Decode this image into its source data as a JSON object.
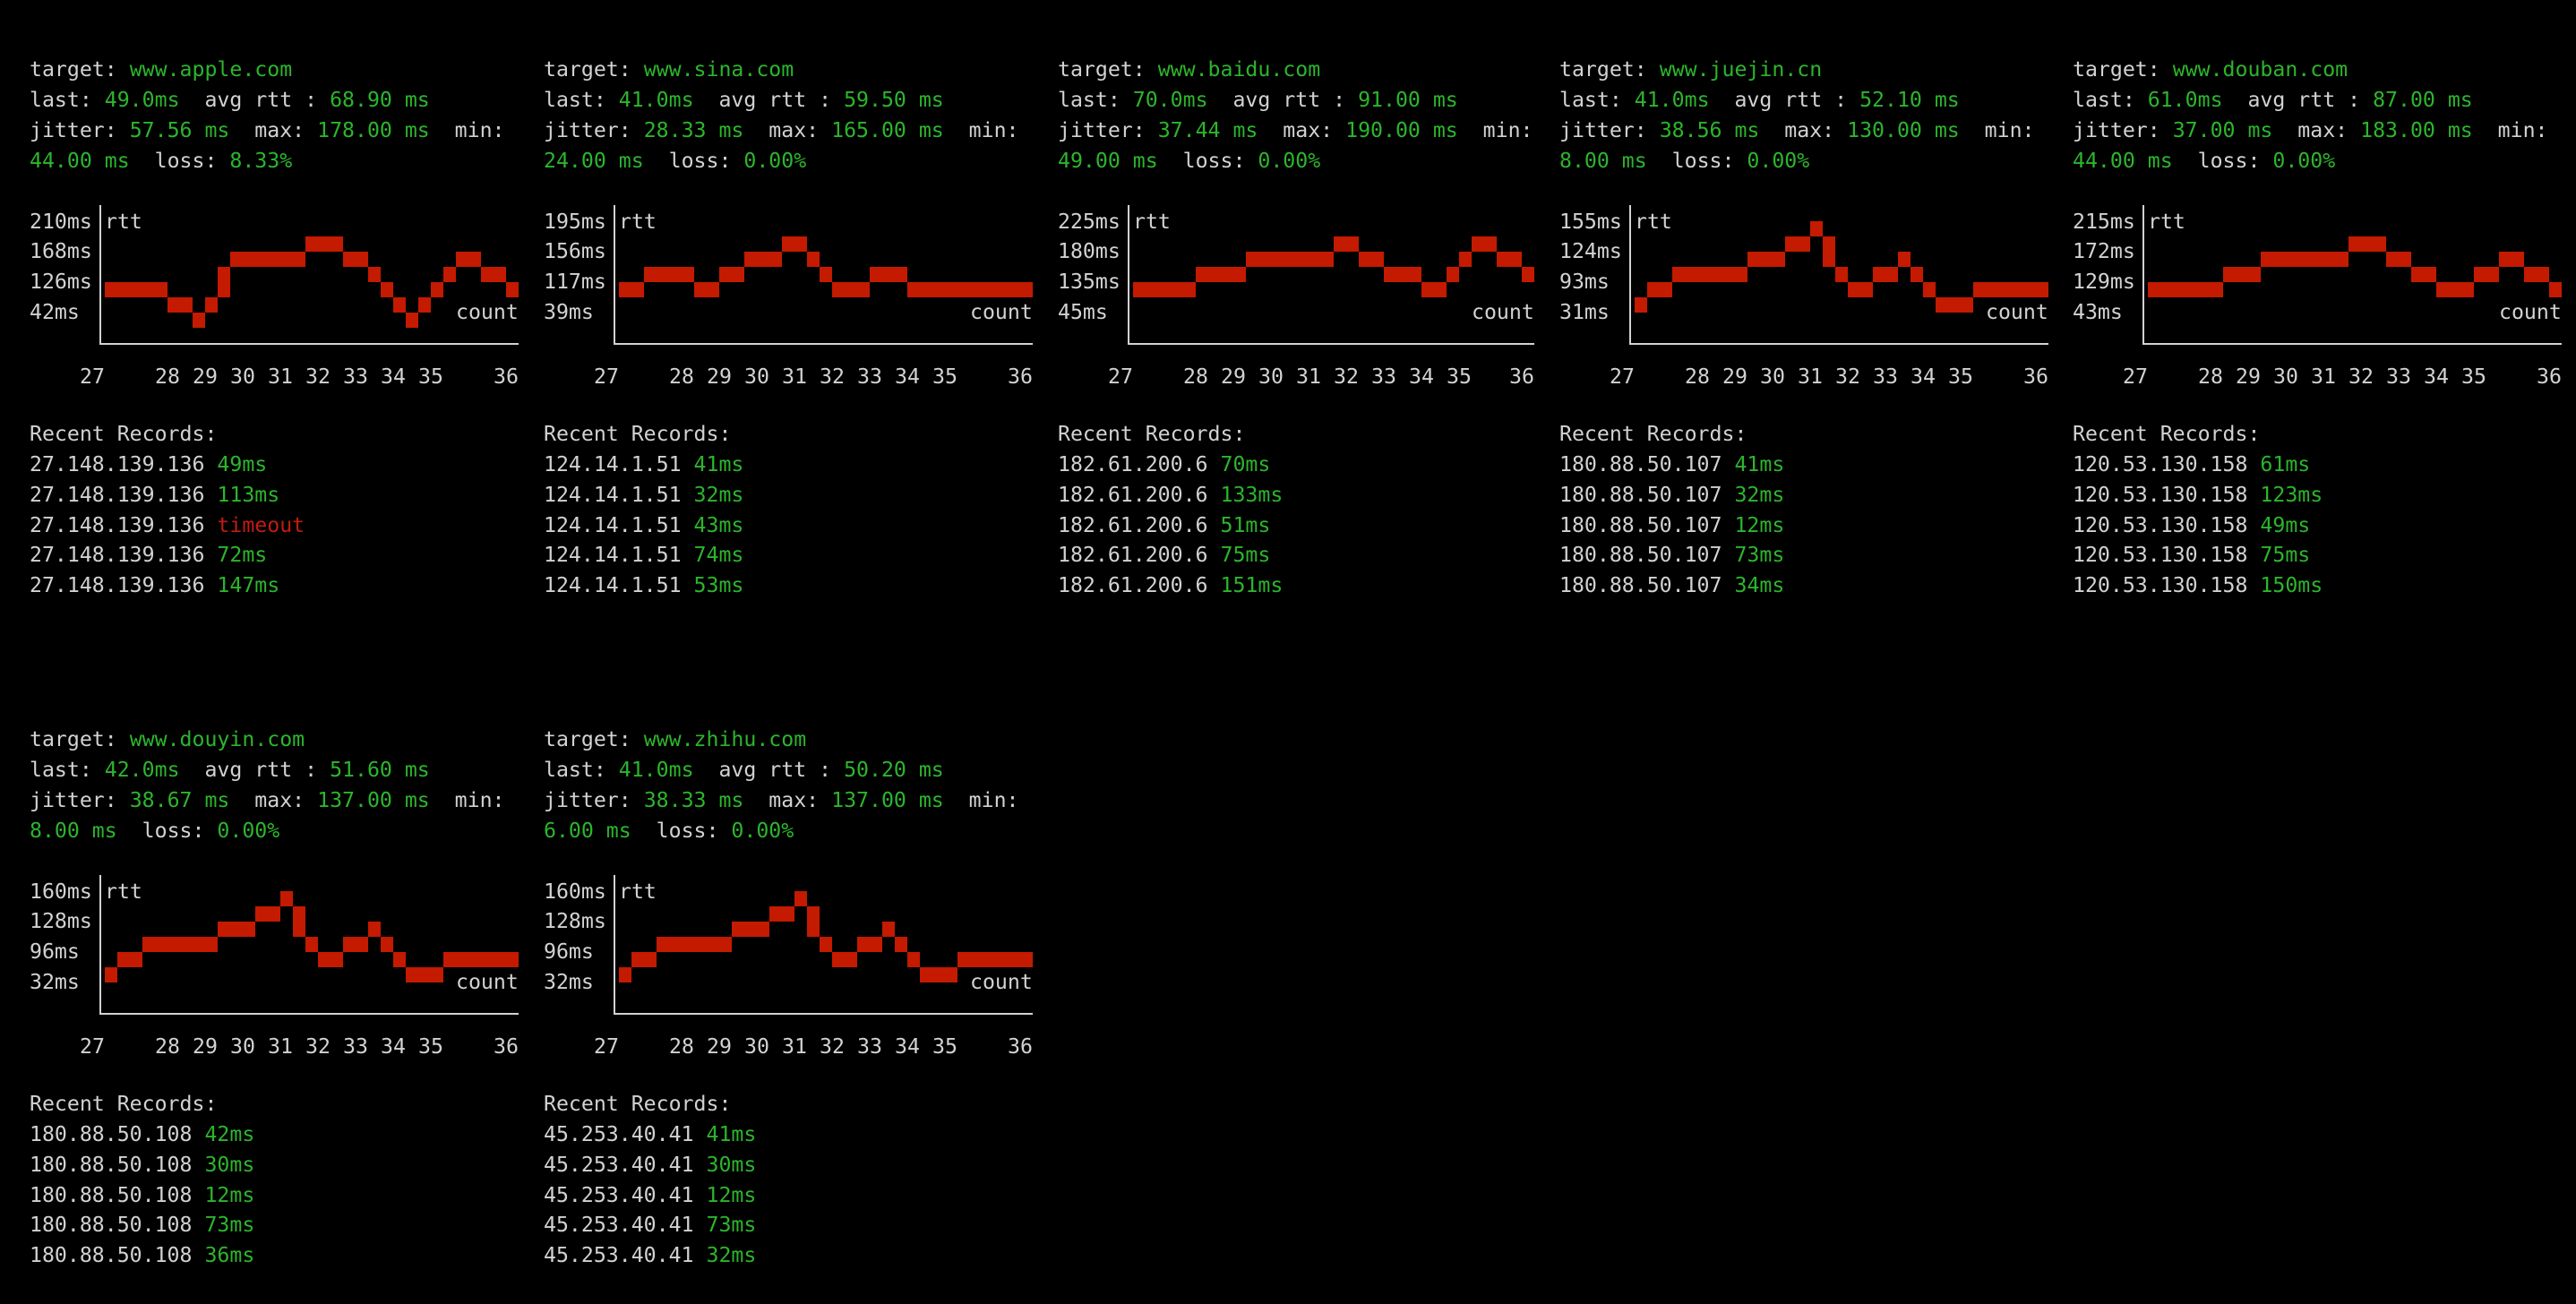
{
  "colors": {
    "background": "#000000",
    "text": "#d2d2d2",
    "value": "#2cb52c",
    "plot": "#c41a00",
    "error": "#c01c10"
  },
  "labels": {
    "target": "target: ",
    "last": "last: ",
    "avg_rtt": "  avg rtt : ",
    "jitter": "jitter: ",
    "max": "  max: ",
    "min": "  min:",
    "loss": "  loss: ",
    "recent_records": "Recent Records:"
  },
  "panels": [
    {
      "target": "www.apple.com",
      "last": "49.0ms",
      "avg_rtt": "68.90 ms",
      "jitter": "57.56 ms",
      "max": "178.00 ms",
      "min": "44.00 ms",
      "loss": "8.33%",
      "chart_data": {
        "type": "line",
        "ylabel": "rtt",
        "xlabel": "count",
        "y_ticks": [
          "210ms",
          "168ms",
          "126ms",
          "42ms"
        ],
        "x_ticks": [
          "27",
          "28",
          "29",
          "30",
          "31",
          "32",
          "33",
          "34",
          "35",
          "36"
        ],
        "levels": [
          2,
          2,
          2,
          2,
          2,
          1,
          1,
          0,
          1,
          [
            2,
            3
          ],
          4,
          4,
          4,
          4,
          4,
          4,
          5,
          5,
          5,
          4,
          4,
          3,
          2,
          1,
          0,
          1,
          2,
          3,
          4,
          4,
          3,
          3,
          2
        ]
      },
      "records": [
        {
          "ip": "27.148.139.136",
          "result": "49ms",
          "status": "ok"
        },
        {
          "ip": "27.148.139.136",
          "result": "113ms",
          "status": "ok"
        },
        {
          "ip": "27.148.139.136",
          "result": "timeout",
          "status": "timeout"
        },
        {
          "ip": "27.148.139.136",
          "result": "72ms",
          "status": "ok"
        },
        {
          "ip": "27.148.139.136",
          "result": "147ms",
          "status": "ok"
        }
      ]
    },
    {
      "target": "www.sina.com",
      "last": "41.0ms",
      "avg_rtt": "59.50 ms",
      "jitter": "28.33 ms",
      "max": "165.00 ms",
      "min": "24.00 ms",
      "loss": "0.00%",
      "chart_data": {
        "type": "line",
        "ylabel": "rtt",
        "xlabel": "count",
        "y_ticks": [
          "195ms",
          "156ms",
          "117ms",
          "39ms"
        ],
        "x_ticks": [
          "27",
          "28",
          "29",
          "30",
          "31",
          "32",
          "33",
          "34",
          "35",
          "36"
        ],
        "levels": [
          2,
          2,
          3,
          3,
          3,
          3,
          2,
          2,
          3,
          3,
          4,
          4,
          4,
          5,
          5,
          4,
          3,
          2,
          2,
          2,
          3,
          3,
          3,
          2,
          2,
          2,
          2,
          2,
          2,
          2,
          2,
          2,
          2
        ]
      },
      "records": [
        {
          "ip": "124.14.1.51",
          "result": "41ms",
          "status": "ok"
        },
        {
          "ip": "124.14.1.51",
          "result": "32ms",
          "status": "ok"
        },
        {
          "ip": "124.14.1.51",
          "result": "43ms",
          "status": "ok"
        },
        {
          "ip": "124.14.1.51",
          "result": "74ms",
          "status": "ok"
        },
        {
          "ip": "124.14.1.51",
          "result": "53ms",
          "status": "ok"
        }
      ]
    },
    {
      "target": "www.baidu.com",
      "last": "70.0ms",
      "avg_rtt": "91.00 ms",
      "jitter": "37.44 ms",
      "max": "190.00 ms",
      "min": "49.00 ms",
      "loss": "0.00%",
      "chart_data": {
        "type": "line",
        "ylabel": "rtt",
        "xlabel": "count",
        "y_ticks": [
          "225ms",
          "180ms",
          "135ms",
          "45ms"
        ],
        "x_ticks": [
          "27",
          "28",
          "29",
          "30",
          "31",
          "32",
          "33",
          "34",
          "35",
          "36"
        ],
        "levels": [
          2,
          2,
          2,
          2,
          2,
          3,
          3,
          3,
          3,
          4,
          4,
          4,
          4,
          4,
          4,
          4,
          5,
          5,
          4,
          4,
          3,
          3,
          3,
          2,
          2,
          3,
          4,
          5,
          5,
          4,
          4,
          3
        ]
      },
      "records": [
        {
          "ip": "182.61.200.6",
          "result": "70ms",
          "status": "ok"
        },
        {
          "ip": "182.61.200.6",
          "result": "133ms",
          "status": "ok"
        },
        {
          "ip": "182.61.200.6",
          "result": "51ms",
          "status": "ok"
        },
        {
          "ip": "182.61.200.6",
          "result": "75ms",
          "status": "ok"
        },
        {
          "ip": "182.61.200.6",
          "result": "151ms",
          "status": "ok"
        }
      ]
    },
    {
      "target": "www.juejin.cn",
      "last": "41.0ms",
      "avg_rtt": "52.10 ms",
      "jitter": "38.56 ms",
      "max": "130.00 ms",
      "min": "8.00 ms",
      "loss": "0.00%",
      "chart_data": {
        "type": "line",
        "ylabel": "rtt",
        "xlabel": "count",
        "y_ticks": [
          "155ms",
          "124ms",
          "93ms",
          "31ms"
        ],
        "x_ticks": [
          "27",
          "28",
          "29",
          "30",
          "31",
          "32",
          "33",
          "34",
          "35",
          "36"
        ],
        "levels": [
          1,
          2,
          2,
          3,
          3,
          3,
          3,
          3,
          3,
          4,
          4,
          4,
          5,
          5,
          6,
          [
            4,
            5
          ],
          3,
          2,
          2,
          3,
          3,
          4,
          3,
          2,
          1,
          1,
          1,
          2,
          2,
          2,
          2,
          2,
          2
        ]
      },
      "records": [
        {
          "ip": "180.88.50.107",
          "result": "41ms",
          "status": "ok"
        },
        {
          "ip": "180.88.50.107",
          "result": "32ms",
          "status": "ok"
        },
        {
          "ip": "180.88.50.107",
          "result": "12ms",
          "status": "ok"
        },
        {
          "ip": "180.88.50.107",
          "result": "73ms",
          "status": "ok"
        },
        {
          "ip": "180.88.50.107",
          "result": "34ms",
          "status": "ok"
        }
      ]
    },
    {
      "target": "www.douban.com",
      "last": "61.0ms",
      "avg_rtt": "87.00 ms",
      "jitter": "37.00 ms",
      "max": "183.00 ms",
      "min": "44.00 ms",
      "loss": "0.00%",
      "chart_data": {
        "type": "line",
        "ylabel": "rtt",
        "xlabel": "count",
        "y_ticks": [
          "215ms",
          "172ms",
          "129ms",
          "43ms"
        ],
        "x_ticks": [
          "27",
          "28",
          "29",
          "30",
          "31",
          "32",
          "33",
          "34",
          "35",
          "36"
        ],
        "levels": [
          2,
          2,
          2,
          2,
          2,
          2,
          3,
          3,
          3,
          4,
          4,
          4,
          4,
          4,
          4,
          4,
          5,
          5,
          5,
          4,
          4,
          3,
          3,
          2,
          2,
          2,
          3,
          3,
          4,
          4,
          3,
          3,
          2
        ]
      },
      "records": [
        {
          "ip": "120.53.130.158",
          "result": "61ms",
          "status": "ok"
        },
        {
          "ip": "120.53.130.158",
          "result": "123ms",
          "status": "ok"
        },
        {
          "ip": "120.53.130.158",
          "result": "49ms",
          "status": "ok"
        },
        {
          "ip": "120.53.130.158",
          "result": "75ms",
          "status": "ok"
        },
        {
          "ip": "120.53.130.158",
          "result": "150ms",
          "status": "ok"
        }
      ]
    },
    {
      "target": "www.douyin.com",
      "last": "42.0ms",
      "avg_rtt": "51.60 ms",
      "jitter": "38.67 ms",
      "max": "137.00 ms",
      "min": "8.00 ms",
      "loss": "0.00%",
      "chart_data": {
        "type": "line",
        "ylabel": "rtt",
        "xlabel": "count",
        "y_ticks": [
          "160ms",
          "128ms",
          "96ms",
          "32ms"
        ],
        "x_ticks": [
          "27",
          "28",
          "29",
          "30",
          "31",
          "32",
          "33",
          "34",
          "35",
          "36"
        ],
        "levels": [
          1,
          2,
          2,
          3,
          3,
          3,
          3,
          3,
          3,
          4,
          4,
          4,
          5,
          5,
          6,
          [
            4,
            5
          ],
          3,
          2,
          2,
          3,
          3,
          4,
          3,
          2,
          1,
          1,
          1,
          2,
          2,
          2,
          2,
          2,
          2
        ]
      },
      "records": [
        {
          "ip": "180.88.50.108",
          "result": "42ms",
          "status": "ok"
        },
        {
          "ip": "180.88.50.108",
          "result": "30ms",
          "status": "ok"
        },
        {
          "ip": "180.88.50.108",
          "result": "12ms",
          "status": "ok"
        },
        {
          "ip": "180.88.50.108",
          "result": "73ms",
          "status": "ok"
        },
        {
          "ip": "180.88.50.108",
          "result": "36ms",
          "status": "ok"
        }
      ]
    },
    {
      "target": "www.zhihu.com",
      "last": "41.0ms",
      "avg_rtt": "50.20 ms",
      "jitter": "38.33 ms",
      "max": "137.00 ms",
      "min": "6.00 ms",
      "loss": "0.00%",
      "chart_data": {
        "type": "line",
        "ylabel": "rtt",
        "xlabel": "count",
        "y_ticks": [
          "160ms",
          "128ms",
          "96ms",
          "32ms"
        ],
        "x_ticks": [
          "27",
          "28",
          "29",
          "30",
          "31",
          "32",
          "33",
          "34",
          "35",
          "36"
        ],
        "levels": [
          1,
          2,
          2,
          3,
          3,
          3,
          3,
          3,
          3,
          4,
          4,
          4,
          5,
          5,
          6,
          [
            4,
            5
          ],
          3,
          2,
          2,
          3,
          3,
          4,
          3,
          2,
          1,
          1,
          1,
          2,
          2,
          2,
          2,
          2,
          2
        ]
      },
      "records": [
        {
          "ip": "45.253.40.41",
          "result": "41ms",
          "status": "ok"
        },
        {
          "ip": "45.253.40.41",
          "result": "30ms",
          "status": "ok"
        },
        {
          "ip": "45.253.40.41",
          "result": "12ms",
          "status": "ok"
        },
        {
          "ip": "45.253.40.41",
          "result": "73ms",
          "status": "ok"
        },
        {
          "ip": "45.253.40.41",
          "result": "32ms",
          "status": "ok"
        }
      ]
    }
  ]
}
